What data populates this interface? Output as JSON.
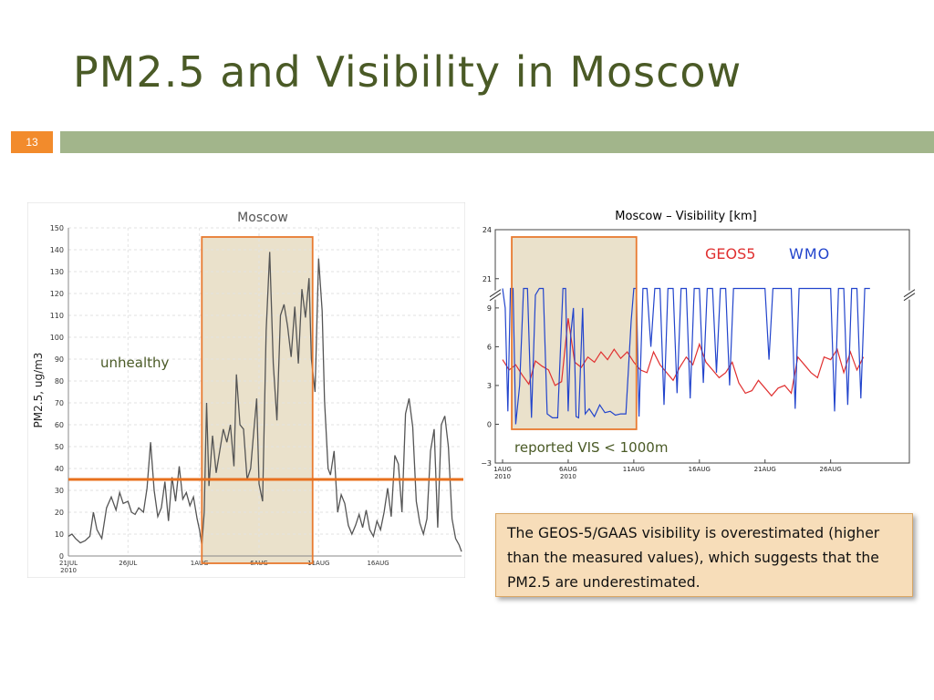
{
  "slide": {
    "title": "PM2.5 and Visibility in Moscow",
    "number": "13",
    "note": "The GEOS-5/GAAS visibility is overestimated (higher than the measured values), which suggests that the PM2.5 are underestimated.",
    "colors": {
      "title": "#4a5a26",
      "accent_bar": "#a2b58b",
      "number_box": "#f28b2c",
      "highlight_fill": "#e6dcc2",
      "highlight_border": "#e87a30",
      "threshold": "#e8701e"
    }
  },
  "chart_data": [
    {
      "type": "line",
      "title": "Moscow",
      "xlabel": "",
      "ylabel": "PM2.5, ug/m3",
      "ylim": [
        0,
        150
      ],
      "yticks": [
        0,
        10,
        20,
        30,
        40,
        50,
        60,
        70,
        80,
        90,
        100,
        110,
        120,
        130,
        140,
        150
      ],
      "xlim": [
        0,
        33
      ],
      "xticks": [
        {
          "x": 0,
          "label": "21JUL",
          "sub": "2010"
        },
        {
          "x": 5,
          "label": "26JUL",
          "sub": ""
        },
        {
          "x": 11,
          "label": "1AUG",
          "sub": ""
        },
        {
          "x": 16,
          "label": "6AUG",
          "sub": ""
        },
        {
          "x": 21,
          "label": "11AUG",
          "sub": ""
        },
        {
          "x": 26,
          "label": "16AUG",
          "sub": ""
        }
      ],
      "grid": true,
      "annotations": [
        {
          "text": "unhealthy"
        }
      ],
      "threshold": {
        "y": 35
      },
      "highlight": {
        "x": [
          11.2,
          20.5
        ]
      },
      "series": [
        {
          "color": "#555555",
          "points": [
            [
              0,
              9
            ],
            [
              0.3,
              10
            ],
            [
              0.6,
              8
            ],
            [
              1,
              6
            ],
            [
              1.4,
              7
            ],
            [
              1.8,
              9
            ],
            [
              2.1,
              20
            ],
            [
              2.4,
              12
            ],
            [
              2.8,
              8
            ],
            [
              3.2,
              22
            ],
            [
              3.6,
              27
            ],
            [
              4,
              21
            ],
            [
              4.3,
              29
            ],
            [
              4.6,
              24
            ],
            [
              5,
              25
            ],
            [
              5.3,
              20
            ],
            [
              5.6,
              19
            ],
            [
              5.9,
              22
            ],
            [
              6.3,
              20
            ],
            [
              6.6,
              31
            ],
            [
              6.9,
              52
            ],
            [
              7.2,
              30
            ],
            [
              7.5,
              18
            ],
            [
              7.8,
              22
            ],
            [
              8.1,
              34
            ],
            [
              8.4,
              16
            ],
            [
              8.7,
              36
            ],
            [
              9,
              25
            ],
            [
              9.3,
              41
            ],
            [
              9.6,
              26
            ],
            [
              9.9,
              29
            ],
            [
              10.2,
              23
            ],
            [
              10.5,
              27
            ],
            [
              10.8,
              17
            ],
            [
              11,
              12
            ],
            [
              11.2,
              5
            ],
            [
              11.4,
              20
            ],
            [
              11.6,
              70
            ],
            [
              11.8,
              32
            ],
            [
              12.1,
              55
            ],
            [
              12.4,
              38
            ],
            [
              12.7,
              48
            ],
            [
              13,
              58
            ],
            [
              13.3,
              52
            ],
            [
              13.6,
              60
            ],
            [
              13.9,
              41
            ],
            [
              14.1,
              83
            ],
            [
              14.4,
              60
            ],
            [
              14.7,
              58
            ],
            [
              15,
              35
            ],
            [
              15.3,
              40
            ],
            [
              15.5,
              53
            ],
            [
              15.8,
              72
            ],
            [
              16,
              33
            ],
            [
              16.3,
              25
            ],
            [
              16.6,
              103
            ],
            [
              16.9,
              139
            ],
            [
              17.2,
              88
            ],
            [
              17.5,
              62
            ],
            [
              17.8,
              110
            ],
            [
              18.1,
              115
            ],
            [
              18.4,
              105
            ],
            [
              18.7,
              91
            ],
            [
              19,
              114
            ],
            [
              19.3,
              88
            ],
            [
              19.6,
              122
            ],
            [
              19.9,
              109
            ],
            [
              20.2,
              127
            ],
            [
              20.4,
              90
            ],
            [
              20.7,
              75
            ],
            [
              21,
              136
            ],
            [
              21.3,
              112
            ],
            [
              21.5,
              71
            ],
            [
              21.8,
              40
            ],
            [
              22,
              37
            ],
            [
              22.3,
              48
            ],
            [
              22.6,
              20
            ],
            [
              22.9,
              28
            ],
            [
              23.2,
              24
            ],
            [
              23.5,
              14
            ],
            [
              23.8,
              10
            ],
            [
              24.1,
              14
            ],
            [
              24.4,
              19
            ],
            [
              24.7,
              13
            ],
            [
              25,
              21
            ],
            [
              25.3,
              12
            ],
            [
              25.6,
              9
            ],
            [
              25.9,
              16
            ],
            [
              26.2,
              12
            ],
            [
              26.5,
              20
            ],
            [
              26.8,
              31
            ],
            [
              27.1,
              18
            ],
            [
              27.4,
              46
            ],
            [
              27.7,
              42
            ],
            [
              28,
              20
            ],
            [
              28.3,
              65
            ],
            [
              28.6,
              72
            ],
            [
              28.9,
              59
            ],
            [
              29.2,
              25
            ],
            [
              29.5,
              15
            ],
            [
              29.8,
              10
            ],
            [
              30.1,
              17
            ],
            [
              30.4,
              48
            ],
            [
              30.7,
              58
            ],
            [
              31,
              13
            ],
            [
              31.3,
              60
            ],
            [
              31.6,
              64
            ],
            [
              31.9,
              50
            ],
            [
              32.2,
              17
            ],
            [
              32.5,
              8
            ],
            [
              32.8,
              5
            ],
            [
              33,
              2
            ]
          ]
        }
      ]
    },
    {
      "type": "line",
      "title": "Moscow – Visibility [km]",
      "xlabel": "",
      "ylabel": "",
      "ylim": [
        -3,
        24
      ],
      "yticks": [
        -3,
        0,
        3,
        6,
        9,
        21,
        24
      ],
      "axis_break": {
        "lower_max": 10,
        "upper_min": 20
      },
      "xlim": [
        0,
        31
      ],
      "xticks": [
        {
          "x": 0,
          "label": "1AUG",
          "sub": "2010"
        },
        {
          "x": 5,
          "label": "6AUG",
          "sub": "2010"
        },
        {
          "x": 10,
          "label": "11AUG",
          "sub": ""
        },
        {
          "x": 15,
          "label": "16AUG",
          "sub": ""
        },
        {
          "x": 20,
          "label": "21AUG",
          "sub": ""
        },
        {
          "x": 25,
          "label": "26AUG",
          "sub": ""
        }
      ],
      "annotations": [
        {
          "text": "reported VIS < 1000m"
        }
      ],
      "highlight": {
        "x": [
          0.7,
          10.2
        ]
      },
      "legend": [
        "GEOS5",
        "WMO"
      ],
      "series": [
        {
          "name": "GEOS5",
          "color": "#e03030",
          "points": [
            [
              0,
              5
            ],
            [
              0.5,
              4.2
            ],
            [
              1,
              4.6
            ],
            [
              1.5,
              3.8
            ],
            [
              2,
              3.1
            ],
            [
              2.5,
              4.9
            ],
            [
              3,
              4.5
            ],
            [
              3.5,
              4.2
            ],
            [
              4,
              3.0
            ],
            [
              4.5,
              3.3
            ],
            [
              5,
              8.2
            ],
            [
              5.5,
              4.8
            ],
            [
              6,
              4.4
            ],
            [
              6.5,
              5.2
            ],
            [
              7,
              4.8
            ],
            [
              7.5,
              5.6
            ],
            [
              8,
              5.0
            ],
            [
              8.5,
              5.8
            ],
            [
              9,
              5.1
            ],
            [
              9.5,
              5.6
            ],
            [
              10,
              4.8
            ],
            [
              10.5,
              4.2
            ],
            [
              11,
              4.0
            ],
            [
              11.5,
              5.6
            ],
            [
              12,
              4.6
            ],
            [
              12.5,
              4.0
            ],
            [
              13,
              3.4
            ],
            [
              13.5,
              4.4
            ],
            [
              14,
              5.2
            ],
            [
              14.5,
              4.6
            ],
            [
              15,
              6.2
            ],
            [
              15.5,
              4.8
            ],
            [
              16,
              4.2
            ],
            [
              16.5,
              3.6
            ],
            [
              17,
              4.0
            ],
            [
              17.5,
              4.8
            ],
            [
              18,
              3.2
            ],
            [
              18.5,
              2.4
            ],
            [
              19,
              2.6
            ],
            [
              19.5,
              3.4
            ],
            [
              20,
              2.8
            ],
            [
              20.5,
              2.2
            ],
            [
              21,
              2.8
            ],
            [
              21.5,
              3.0
            ],
            [
              22,
              2.4
            ],
            [
              22.5,
              5.2
            ],
            [
              23,
              4.6
            ],
            [
              23.5,
              4.0
            ],
            [
              24,
              3.6
            ],
            [
              24.5,
              5.2
            ],
            [
              25,
              5.0
            ],
            [
              25.5,
              5.8
            ],
            [
              26,
              4.0
            ],
            [
              26.5,
              5.6
            ],
            [
              27,
              4.2
            ],
            [
              27.5,
              5.2
            ]
          ]
        },
        {
          "name": "WMO",
          "color": "#2244cc",
          "points": [
            [
              0,
              20.4
            ],
            [
              0.2,
              9
            ],
            [
              0.4,
              1
            ],
            [
              0.6,
              20.4
            ],
            [
              0.8,
              20.4
            ],
            [
              1,
              0
            ],
            [
              1.3,
              3
            ],
            [
              1.6,
              20.4
            ],
            [
              1.9,
              20.4
            ],
            [
              2.2,
              0.5
            ],
            [
              2.5,
              10
            ],
            [
              2.8,
              20.4
            ],
            [
              3.1,
              20.4
            ],
            [
              3.4,
              0.8
            ],
            [
              3.8,
              0.5
            ],
            [
              4.2,
              0.5
            ],
            [
              4.6,
              20.4
            ],
            [
              4.8,
              20.4
            ],
            [
              5,
              1
            ],
            [
              5.2,
              7
            ],
            [
              5.4,
              9
            ],
            [
              5.6,
              0.6
            ],
            [
              5.8,
              0.5
            ],
            [
              6.1,
              9
            ],
            [
              6.3,
              0.8
            ],
            [
              6.6,
              1.2
            ],
            [
              7,
              0.6
            ],
            [
              7.4,
              1.5
            ],
            [
              7.8,
              0.9
            ],
            [
              8.2,
              1.0
            ],
            [
              8.6,
              0.7
            ],
            [
              9,
              0.8
            ],
            [
              9.4,
              0.8
            ],
            [
              9.8,
              8
            ],
            [
              10,
              20.4
            ],
            [
              10.2,
              20.4
            ],
            [
              10.4,
              0.6
            ],
            [
              10.7,
              20.4
            ],
            [
              11,
              20.4
            ],
            [
              11.3,
              6
            ],
            [
              11.6,
              20.4
            ],
            [
              12,
              20.4
            ],
            [
              12.3,
              1.5
            ],
            [
              12.6,
              20.4
            ],
            [
              13,
              20.4
            ],
            [
              13.3,
              2.4
            ],
            [
              13.6,
              20.4
            ],
            [
              14,
              20.4
            ],
            [
              14.3,
              2.0
            ],
            [
              14.6,
              20.4
            ],
            [
              15,
              20.4
            ],
            [
              15.3,
              3.2
            ],
            [
              15.6,
              20.4
            ],
            [
              16,
              20.4
            ],
            [
              16.3,
              4
            ],
            [
              16.6,
              20.4
            ],
            [
              17,
              20.4
            ],
            [
              17.3,
              3
            ],
            [
              17.6,
              20.4
            ],
            [
              18,
              20.4
            ],
            [
              18.5,
              20.4
            ],
            [
              19,
              20.4
            ],
            [
              19.5,
              20.4
            ],
            [
              20,
              20.4
            ],
            [
              20.3,
              5
            ],
            [
              20.6,
              20.4
            ],
            [
              21,
              20.4
            ],
            [
              21.5,
              20.4
            ],
            [
              22,
              20.4
            ],
            [
              22.3,
              1.2
            ],
            [
              22.6,
              20.4
            ],
            [
              23,
              20.4
            ],
            [
              23.5,
              20.4
            ],
            [
              24,
              20.4
            ],
            [
              24.5,
              20.4
            ],
            [
              25,
              20.4
            ],
            [
              25.3,
              1.0
            ],
            [
              25.6,
              20.4
            ],
            [
              26,
              20.4
            ],
            [
              26.3,
              1.5
            ],
            [
              26.6,
              20.4
            ],
            [
              27,
              20.4
            ],
            [
              27.3,
              2.0
            ],
            [
              27.6,
              20.4
            ],
            [
              28,
              20.4
            ]
          ]
        }
      ]
    }
  ]
}
